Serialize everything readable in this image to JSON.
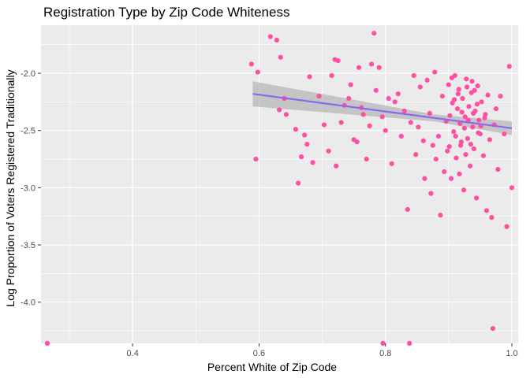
{
  "chart_data": {
    "type": "scatter",
    "title": "Registration Type by Zip Code Whiteness",
    "xlabel": "Percent White of Zip Code",
    "ylabel": "Log Proportion of Voters Registered Traditionally",
    "xlim": [
      0.255,
      1.01
    ],
    "ylim": [
      -4.36,
      -1.58
    ],
    "x_ticks": [
      0.4,
      0.6,
      0.8,
      1.0
    ],
    "x_tick_labels": [
      "0.4",
      "0.6",
      "0.8",
      "1.0"
    ],
    "y_ticks": [
      -4.0,
      -3.5,
      -3.0,
      -2.5,
      -2.0
    ],
    "y_tick_labels": [
      "-4.0",
      "-3.5",
      "-3.0",
      "-2.5",
      "-2.0"
    ],
    "grid": true,
    "legend": "none",
    "colors": {
      "panel": "#ebebeb",
      "grid": "#ffffff",
      "points": "#ff4fa3",
      "trend_line": "#8a68f0",
      "confidence_band": "#bdbdbd"
    },
    "trend": {
      "method": "linear",
      "x_range": [
        0.59,
        1.0
      ],
      "y_start": -2.18,
      "y_end": -2.48,
      "ci_halfwidth_start": 0.11,
      "ci_halfwidth_end": 0.06
    },
    "points": [
      [
        0.265,
        -4.36
      ],
      [
        0.588,
        -1.92
      ],
      [
        0.595,
        -2.75
      ],
      [
        0.598,
        -1.99
      ],
      [
        0.618,
        -1.68
      ],
      [
        0.628,
        -1.71
      ],
      [
        0.632,
        -2.32
      ],
      [
        0.634,
        -1.86
      ],
      [
        0.64,
        -2.22
      ],
      [
        0.643,
        -2.36
      ],
      [
        0.658,
        -2.49
      ],
      [
        0.662,
        -2.96
      ],
      [
        0.667,
        -2.73
      ],
      [
        0.672,
        -2.54
      ],
      [
        0.676,
        -2.62
      ],
      [
        0.68,
        -2.03
      ],
      [
        0.685,
        -2.78
      ],
      [
        0.695,
        -2.2
      ],
      [
        0.703,
        -2.45
      ],
      [
        0.71,
        -2.68
      ],
      [
        0.715,
        -2.02
      ],
      [
        0.72,
        -1.88
      ],
      [
        0.722,
        -2.81
      ],
      [
        0.725,
        -1.89
      ],
      [
        0.73,
        -2.43
      ],
      [
        0.735,
        -2.28
      ],
      [
        0.742,
        -2.22
      ],
      [
        0.745,
        -2.1
      ],
      [
        0.75,
        -2.58
      ],
      [
        0.755,
        -2.6
      ],
      [
        0.758,
        -1.95
      ],
      [
        0.762,
        -2.3
      ],
      [
        0.765,
        -2.36
      ],
      [
        0.77,
        -2.75
      ],
      [
        0.775,
        -2.46
      ],
      [
        0.778,
        -1.92
      ],
      [
        0.782,
        -1.65
      ],
      [
        0.785,
        -2.15
      ],
      [
        0.79,
        -1.95
      ],
      [
        0.795,
        -2.38
      ],
      [
        0.796,
        -4.36
      ],
      [
        0.8,
        -2.5
      ],
      [
        0.805,
        -2.22
      ],
      [
        0.81,
        -2.79
      ],
      [
        0.815,
        -2.25
      ],
      [
        0.82,
        -2.18
      ],
      [
        0.825,
        -2.55
      ],
      [
        0.83,
        -2.33
      ],
      [
        0.835,
        -3.19
      ],
      [
        0.838,
        -4.36
      ],
      [
        0.84,
        -2.43
      ],
      [
        0.845,
        -2.02
      ],
      [
        0.848,
        -2.71
      ],
      [
        0.852,
        -2.47
      ],
      [
        0.855,
        -2.12
      ],
      [
        0.86,
        -2.59
      ],
      [
        0.862,
        -2.92
      ],
      [
        0.866,
        -2.06
      ],
      [
        0.87,
        -2.35
      ],
      [
        0.872,
        -3.05
      ],
      [
        0.875,
        -2.63
      ],
      [
        0.878,
        -1.99
      ],
      [
        0.88,
        -2.75
      ],
      [
        0.884,
        -2.55
      ],
      [
        0.887,
        -3.24
      ],
      [
        0.89,
        -2.2
      ],
      [
        0.893,
        -2.86
      ],
      [
        0.896,
        -2.42
      ],
      [
        0.898,
        -2.68
      ],
      [
        0.9,
        -2.1
      ],
      [
        0.902,
        -2.37
      ],
      [
        0.904,
        -2.92
      ],
      [
        0.906,
        -2.26
      ],
      [
        0.908,
        -2.51
      ],
      [
        0.91,
        -2.02
      ],
      [
        0.912,
        -2.74
      ],
      [
        0.914,
        -2.31
      ],
      [
        0.916,
        -2.14
      ],
      [
        0.918,
        -2.44
      ],
      [
        0.92,
        -2.6
      ],
      [
        0.922,
        -2.22
      ],
      [
        0.924,
        -3.02
      ],
      [
        0.926,
        -2.38
      ],
      [
        0.928,
        -2.05
      ],
      [
        0.93,
        -2.57
      ],
      [
        0.932,
        -2.29
      ],
      [
        0.934,
        -2.81
      ],
      [
        0.936,
        -2.17
      ],
      [
        0.938,
        -2.47
      ],
      [
        0.94,
        -2.66
      ],
      [
        0.942,
        -2.33
      ],
      [
        0.944,
        -3.09
      ],
      [
        0.946,
        -2.11
      ],
      [
        0.948,
        -2.41
      ],
      [
        0.95,
        -2.53
      ],
      [
        0.952,
        -2.25
      ],
      [
        0.955,
        -2.72
      ],
      [
        0.958,
        -2.36
      ],
      [
        0.96,
        -3.2
      ],
      [
        0.962,
        -2.19
      ],
      [
        0.965,
        -2.58
      ],
      [
        0.968,
        -3.26
      ],
      [
        0.97,
        -4.23
      ],
      [
        0.972,
        -2.45
      ],
      [
        0.975,
        -2.31
      ],
      [
        0.978,
        -2.84
      ],
      [
        0.982,
        -2.2
      ],
      [
        0.988,
        -2.53
      ],
      [
        0.992,
        -3.34
      ],
      [
        0.996,
        -1.94
      ],
      [
        1.0,
        -3.0
      ],
      [
        0.905,
        -2.04
      ],
      [
        0.915,
        -2.18
      ],
      [
        0.925,
        -2.48
      ],
      [
        0.935,
        -2.62
      ],
      [
        0.945,
        -2.27
      ],
      [
        0.921,
        -2.34
      ],
      [
        0.931,
        -2.41
      ],
      [
        0.911,
        -2.55
      ],
      [
        0.941,
        -2.15
      ],
      [
        0.951,
        -2.46
      ],
      [
        0.901,
        -2.64
      ],
      [
        0.927,
        -2.71
      ],
      [
        0.937,
        -2.07
      ],
      [
        0.917,
        -2.88
      ],
      [
        0.947,
        -2.52
      ],
      [
        0.957,
        -2.39
      ],
      [
        0.909,
        -2.23
      ],
      [
        0.919,
        -2.63
      ],
      [
        0.929,
        -2.12
      ],
      [
        0.939,
        -2.35
      ]
    ]
  }
}
